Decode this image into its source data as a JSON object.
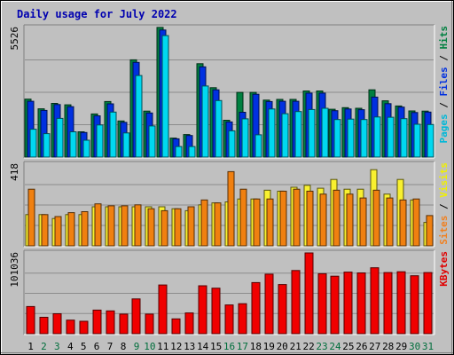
{
  "chart_data": {
    "title": "Daily usage for July 2022",
    "type": "bar",
    "categories": [
      "1",
      "2",
      "3",
      "4",
      "5",
      "6",
      "7",
      "8",
      "9",
      "10",
      "11",
      "12",
      "13",
      "14",
      "15",
      "16",
      "17",
      "18",
      "19",
      "20",
      "21",
      "22",
      "23",
      "24",
      "25",
      "26",
      "27",
      "28",
      "29",
      "30",
      "31"
    ],
    "weekend_days": [
      "2",
      "3",
      "9",
      "10",
      "16",
      "17",
      "23",
      "24",
      "30",
      "31"
    ],
    "panels": [
      {
        "id": "requests",
        "ymax_label": "5526",
        "ylim": [
          0,
          5526
        ],
        "legend": [
          {
            "text": "Pages",
            "color": "#00b8d8"
          },
          {
            "text": " / ",
            "color": "#000000"
          },
          {
            "text": "Files",
            "color": "#0030e0"
          },
          {
            "text": " / ",
            "color": "#000000"
          },
          {
            "text": "Hits",
            "color": "#008040"
          }
        ],
        "series": [
          {
            "name": "Hits",
            "color": "#008040",
            "values": [
              2470,
              2060,
              2290,
              2230,
              1080,
              1840,
              2370,
              1540,
              4150,
              1960,
              5530,
              810,
              960,
              3980,
              2960,
              1570,
              2760,
              2760,
              2430,
              2460,
              2460,
              2820,
              2820,
              2040,
              2110,
              2080,
              2870,
              2400,
              2180,
              1970,
              1960
            ]
          },
          {
            "name": "Files",
            "color": "#0030e0",
            "values": [
              2380,
              1990,
              2240,
              2150,
              1050,
              1760,
              2270,
              1480,
              4040,
              1880,
              5420,
              780,
              920,
              3850,
              2870,
              1500,
              1910,
              2680,
              2370,
              2380,
              2380,
              2730,
              2730,
              1980,
              2050,
              2020,
              2560,
              2280,
              2130,
              1900,
              1920
            ]
          },
          {
            "name": "Pages",
            "color": "#00d8f0",
            "values": [
              1190,
              1000,
              1650,
              1080,
              720,
              1370,
              1920,
              1030,
              3480,
              1330,
              5180,
              450,
              450,
              3030,
              2410,
              1120,
              1630,
              950,
              2050,
              1850,
              1940,
              2030,
              2080,
              1600,
              1620,
              1600,
              1710,
              1700,
              1640,
              1400,
              1390
            ]
          }
        ]
      },
      {
        "id": "visitors",
        "ymax_label": "418",
        "ylim": [
          0,
          418
        ],
        "legend": [
          {
            "text": "Sites",
            "color": "#f08020"
          },
          {
            "text": " / ",
            "color": "#000000"
          },
          {
            "text": "Visits",
            "color": "#f0f000"
          }
        ],
        "series": [
          {
            "name": "Visits",
            "color": "#f8f030",
            "values": [
              160,
              160,
              140,
              160,
              160,
              200,
              200,
              200,
              200,
              200,
              200,
              190,
              180,
              210,
              220,
              225,
              240,
              240,
              285,
              280,
              300,
              310,
              295,
              340,
              290,
              290,
              390,
              265,
              340,
              235,
              120
            ]
          },
          {
            "name": "Sites",
            "color": "#f08010",
            "values": [
              290,
              160,
              150,
              170,
              175,
              215,
              205,
              205,
              210,
              190,
              180,
              190,
              200,
              235,
              220,
              380,
              290,
              240,
              240,
              280,
              290,
              280,
              265,
              285,
              265,
              245,
              285,
              245,
              235,
              240,
              155
            ]
          }
        ]
      },
      {
        "id": "kbytes",
        "ymax_label": "101036",
        "ylim": [
          0,
          101036
        ],
        "legend": [
          {
            "text": "KBytes",
            "color": "#e00000"
          }
        ],
        "series": [
          {
            "name": "KBytes",
            "color": "#f00000",
            "values": [
              34000,
              20500,
              25000,
              17000,
              15500,
              29500,
              28500,
              24500,
              43500,
              24500,
              61000,
              18500,
              26000,
              60000,
              57000,
              36000,
              37500,
              64000,
              74500,
              61500,
              79000,
              101000,
              75000,
              72000,
              77000,
              76000,
              82500,
              76500,
              77500,
              72500,
              76500
            ]
          }
        ]
      }
    ]
  }
}
